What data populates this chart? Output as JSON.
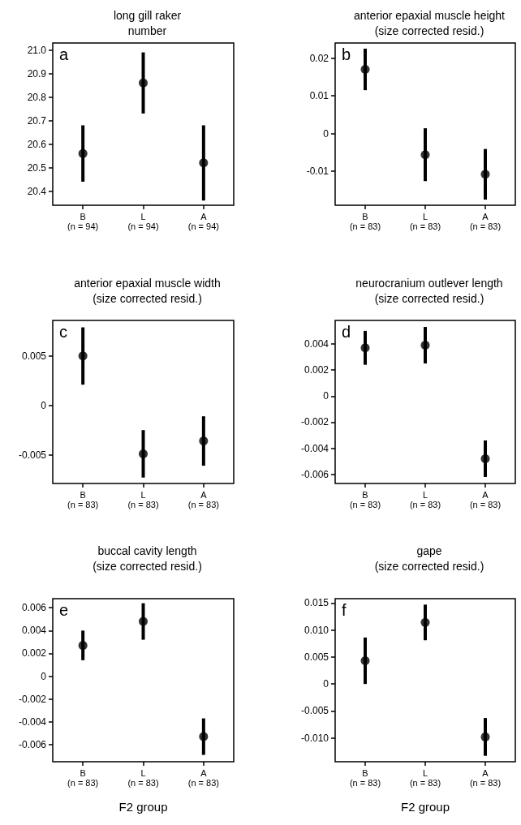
{
  "chart_data": [
    {
      "type": "scatter",
      "title": "long gill raker\nnumber",
      "categories": [
        "B\n(n = 94)",
        "L\n(n = 94)",
        "A\n(n = 94)"
      ],
      "values": [
        20.56,
        20.86,
        20.52
      ],
      "errors": [
        0.12,
        0.13,
        0.16
      ],
      "color": "#000000",
      "marker": "circle",
      "ylim": [
        20.34,
        21.03
      ],
      "yticks": [
        20.4,
        20.5,
        20.6,
        20.7,
        20.8,
        20.9,
        {
          "value": 21.0,
          "label": "21.0"
        }
      ],
      "grid": false,
      "annotations": [
        "a"
      ]
    },
    {
      "type": "scatter",
      "title": "anterior epaxial muscle height\n(size corrected resid.)",
      "categories": [
        "B\n(n = 83)",
        "L\n(n = 83)",
        "A\n(n = 83)"
      ],
      "values": [
        0.017,
        -0.0056,
        -0.0108
      ],
      "errors": [
        0.0055,
        0.007,
        0.0067
      ],
      "color": "#000000",
      "marker": "circle",
      "ylim": [
        -0.019,
        0.024
      ],
      "yticks": [
        -0.01,
        0,
        0.01,
        0.02
      ],
      "grid": false,
      "annotations": [
        "b"
      ]
    },
    {
      "type": "scatter",
      "title": "anterior epaxial muscle width\n(size corrected resid.)",
      "categories": [
        "B\n(n = 83)",
        "L\n(n = 83)",
        "A\n(n = 83)"
      ],
      "values": [
        0.005,
        -0.0049,
        -0.0036
      ],
      "errors": [
        0.0029,
        0.0024,
        0.0025
      ],
      "color": "#000000",
      "marker": "circle",
      "ylim": [
        -0.0079,
        0.0086
      ],
      "yticks": [
        -0.005,
        0,
        0.005
      ],
      "grid": false,
      "annotations": [
        "c"
      ]
    },
    {
      "type": "scatter",
      "title": "neurocranium outlever length\n(size corrected resid.)",
      "categories": [
        "B\n(n = 83)",
        "L\n(n = 83)",
        "A\n(n = 83)"
      ],
      "values": [
        0.0037,
        0.0039,
        -0.0048
      ],
      "errors": [
        0.0013,
        0.0014,
        0.0014
      ],
      "color": "#000000",
      "marker": "circle",
      "ylim": [
        -0.0067,
        0.0058
      ],
      "yticks": [
        -0.006,
        -0.004,
        -0.002,
        0,
        0.002,
        0.004
      ],
      "grid": false,
      "annotations": [
        "d"
      ]
    },
    {
      "type": "scatter",
      "title": "buccal cavity length\n(size corrected resid.)",
      "xlabel": "F2 group",
      "categories": [
        "B\n(n = 83)",
        "L\n(n = 83)",
        "A\n(n = 83)"
      ],
      "values": [
        0.0027,
        0.0048,
        -0.0053
      ],
      "errors": [
        0.0013,
        0.0016,
        0.0016
      ],
      "color": "#000000",
      "marker": "circle",
      "ylim": [
        -0.0075,
        0.0068
      ],
      "yticks": [
        -0.006,
        -0.004,
        -0.002,
        0,
        0.002,
        0.004,
        0.006
      ],
      "grid": false,
      "annotations": [
        "e"
      ]
    },
    {
      "type": "scatter",
      "title": "gape\n(size corrected resid.)",
      "xlabel": "F2 group",
      "categories": [
        "B\n(n = 83)",
        "L\n(n = 83)",
        "A\n(n = 83)"
      ],
      "values": [
        0.0043,
        0.0114,
        -0.0098
      ],
      "errors": [
        0.0043,
        0.0033,
        0.0035
      ],
      "color": "#000000",
      "marker": "circle",
      "ylim": [
        -0.0144,
        0.0158
      ],
      "yticks": [
        {
          "value": -0.01,
          "label": "-0.010"
        },
        -0.005,
        0,
        0.005,
        {
          "value": 0.01,
          "label": "0.010"
        },
        0.015
      ],
      "grid": false,
      "annotations": [
        "f"
      ]
    }
  ]
}
